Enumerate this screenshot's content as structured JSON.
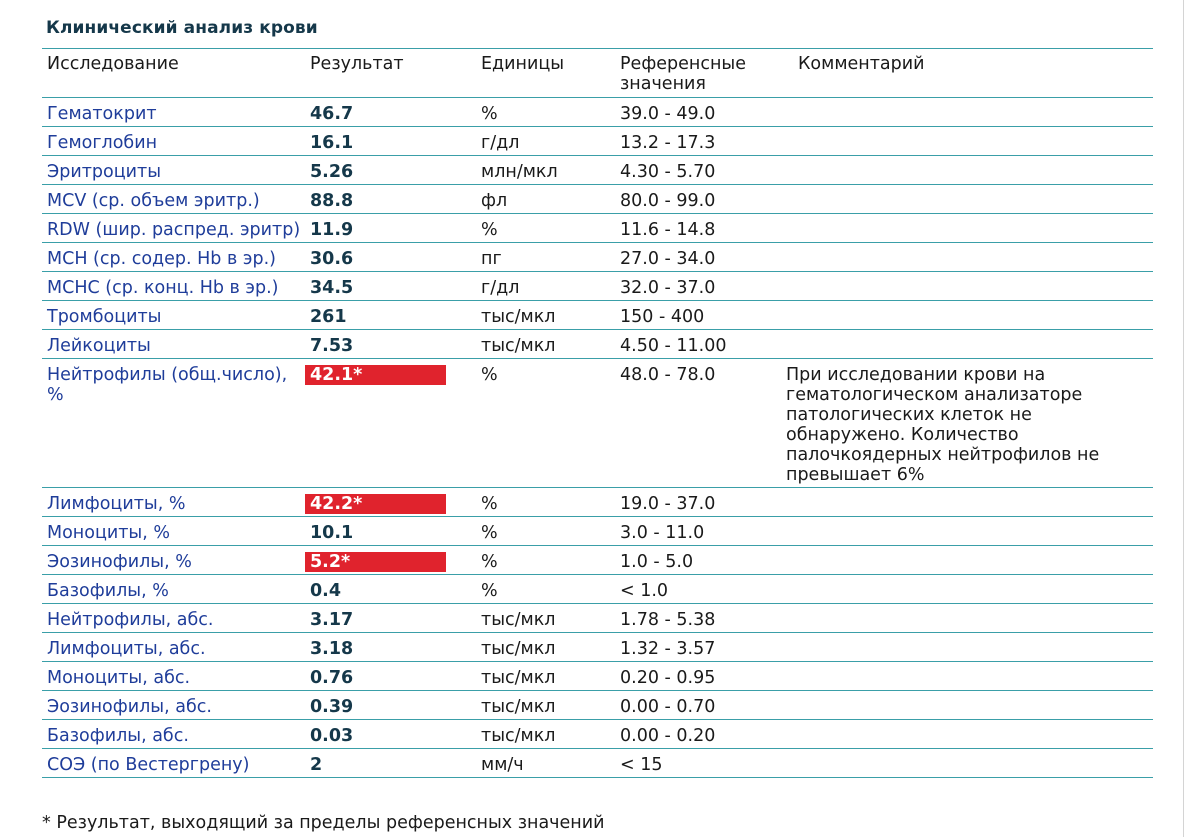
{
  "report": {
    "title": "Клинический анализ крови",
    "columns": {
      "name": "Исследование",
      "result": "Результат",
      "units": "Единицы",
      "reference": "Референсные значения",
      "comment": "Комментарий"
    },
    "rows": [
      {
        "name": "Гематокрит",
        "result": "46.7",
        "units": "%",
        "reference": "39.0 - 49.0",
        "comment": "",
        "flagged": false
      },
      {
        "name": "Гемоглобин",
        "result": "16.1",
        "units": "г/дл",
        "reference": "13.2 - 17.3",
        "comment": "",
        "flagged": false
      },
      {
        "name": "Эритроциты",
        "result": "5.26",
        "units": "млн/мкл",
        "reference": "4.30 - 5.70",
        "comment": "",
        "flagged": false
      },
      {
        "name": "MCV (ср. объем эритр.)",
        "result": "88.8",
        "units": "фл",
        "reference": "80.0 - 99.0",
        "comment": "",
        "flagged": false
      },
      {
        "name": "RDW (шир. распред. эритр)",
        "result": "11.9",
        "units": "%",
        "reference": "11.6 - 14.8",
        "comment": "",
        "flagged": false
      },
      {
        "name": "MCH (ср. содер. Hb в эр.)",
        "result": "30.6",
        "units": "пг",
        "reference": "27.0 - 34.0",
        "comment": "",
        "flagged": false
      },
      {
        "name": "MCHC (ср. конц. Hb в эр.)",
        "result": "34.5",
        "units": "г/дл",
        "reference": "32.0 - 37.0",
        "comment": "",
        "flagged": false
      },
      {
        "name": "Тромбоциты",
        "result": "261",
        "units": "тыс/мкл",
        "reference": "150 - 400",
        "comment": "",
        "flagged": false
      },
      {
        "name": "Лейкоциты",
        "result": "7.53",
        "units": "тыс/мкл",
        "reference": "4.50 - 11.00",
        "comment": "",
        "flagged": false
      },
      {
        "name": "Нейтрофилы (общ.число), %",
        "result": "42.1*",
        "units": "%",
        "reference": "48.0 - 78.0",
        "comment": "При исследовании крови на гематологическом анализаторе патологических клеток не обнаружено. Количество палочкоядерных нейтрофилов не превышает 6%",
        "flagged": true
      },
      {
        "name": "Лимфоциты, %",
        "result": "42.2*",
        "units": "%",
        "reference": "19.0 - 37.0",
        "comment": "",
        "flagged": true
      },
      {
        "name": "Моноциты, %",
        "result": "10.1",
        "units": "%",
        "reference": "3.0 - 11.0",
        "comment": "",
        "flagged": false
      },
      {
        "name": "Эозинофилы, %",
        "result": "5.2*",
        "units": "%",
        "reference": "1.0 - 5.0",
        "comment": "",
        "flagged": true
      },
      {
        "name": "Базофилы, %",
        "result": "0.4",
        "units": "%",
        "reference": "< 1.0",
        "comment": "",
        "flagged": false
      },
      {
        "name": "Нейтрофилы, абс.",
        "result": "3.17",
        "units": "тыс/мкл",
        "reference": "1.78 - 5.38",
        "comment": "",
        "flagged": false
      },
      {
        "name": "Лимфоциты, абс.",
        "result": "3.18",
        "units": "тыс/мкл",
        "reference": "1.32 - 3.57",
        "comment": "",
        "flagged": false
      },
      {
        "name": "Моноциты, абс.",
        "result": "0.76",
        "units": "тыс/мкл",
        "reference": "0.20 - 0.95",
        "comment": "",
        "flagged": false
      },
      {
        "name": "Эозинофилы, абс.",
        "result": "0.39",
        "units": "тыс/мкл",
        "reference": "0.00 - 0.70",
        "comment": "",
        "flagged": false
      },
      {
        "name": "Базофилы, абс.",
        "result": "0.03",
        "units": "тыс/мкл",
        "reference": "0.00 - 0.20",
        "comment": "",
        "flagged": false
      },
      {
        "name": "СОЭ (по Вестергрену)",
        "result": "2",
        "units": "мм/ч",
        "reference": "< 15",
        "comment": "",
        "flagged": false
      }
    ],
    "footnote": "* Результат, выходящий за пределы референсных значений"
  },
  "colors": {
    "rule": "#3a9fa8",
    "title": "#15384a",
    "test_name": "#1f3d9a",
    "flag_background": "#e0232d",
    "flag_text": "#ffffff"
  }
}
